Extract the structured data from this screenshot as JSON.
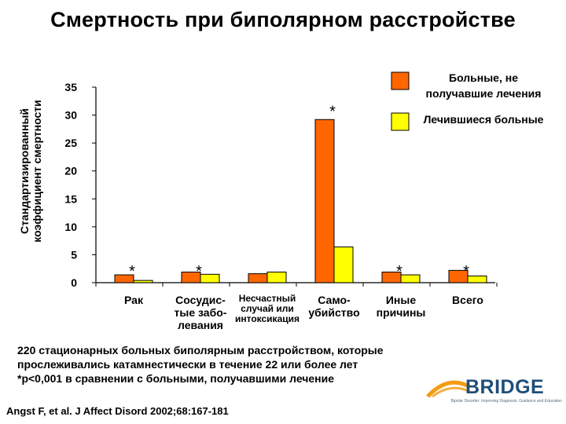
{
  "title": "Смертность при биполярном расстройстве",
  "chart_data": {
    "type": "bar",
    "ylabel_lines": [
      "Стандартизированный",
      "коэффициент смертности"
    ],
    "ylim": [
      0,
      35
    ],
    "yticks": [
      0,
      5,
      10,
      15,
      20,
      25,
      30,
      35
    ],
    "categories": [
      [
        "Рак"
      ],
      [
        "Сосудис-",
        "тые забо-",
        "левания"
      ],
      [
        "Несчастный",
        "случай или",
        "интоксикация"
      ],
      [
        "Само-",
        "убийство"
      ],
      [
        "Иные",
        "причины"
      ],
      [
        "Всего"
      ]
    ],
    "series": [
      {
        "name_lines": [
          "Больные, не",
          "получавшие лечения"
        ],
        "color": "#ff6600",
        "values": [
          1.4,
          1.9,
          1.6,
          29.2,
          1.9,
          2.2
        ]
      },
      {
        "name_lines": [
          "Лечившиеся больные"
        ],
        "color": "#ffff00",
        "values": [
          0.4,
          1.5,
          1.9,
          6.4,
          1.4,
          1.2
        ]
      }
    ],
    "significance": [
      "*",
      "*",
      "",
      "*",
      "*",
      "*"
    ],
    "legend_position": "top-right",
    "grid": false
  },
  "note_lines": [
    "220 стационарных больных биполярным расстройством, которые",
    "прослеживались катамнестически в течение 22 или более лет",
    "*p<0,001 в сравнении с больными, получавшими лечение"
  ],
  "citation": "Angst F, et al. J Affect Disord 2002;68:167-181",
  "logo": {
    "word": "BRIDGE",
    "tagline": "Bipolar Disorder: Improving Diagnosis, Guidance and Education"
  }
}
